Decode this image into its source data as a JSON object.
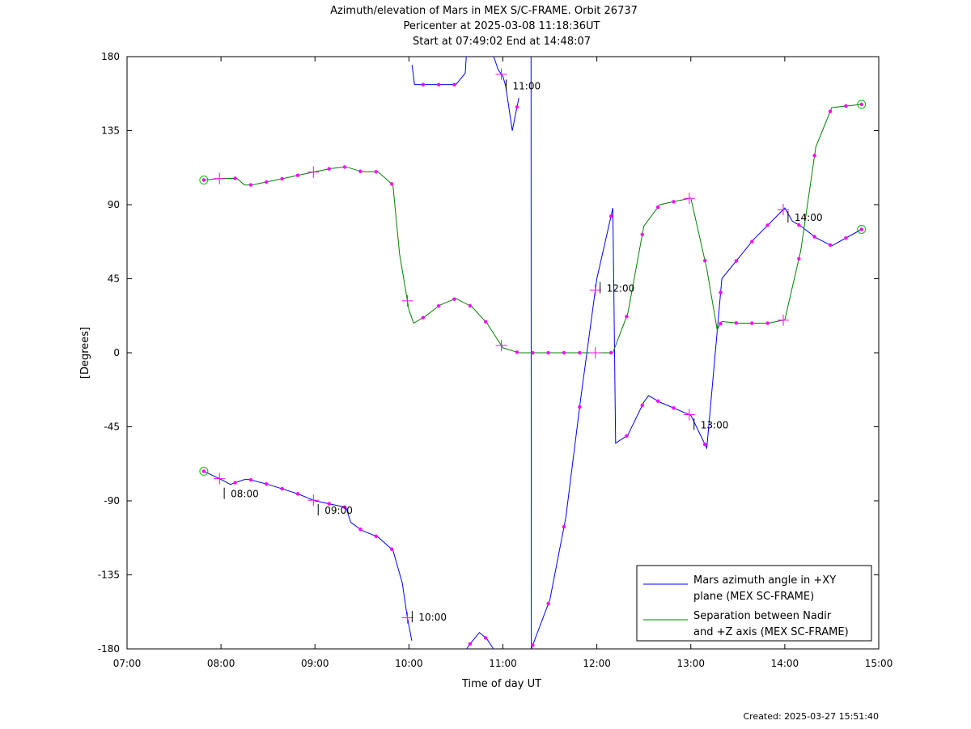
{
  "chart_data": {
    "type": "line",
    "title_lines": [
      "Azimuth/elevation of Mars in MEX S/C-FRAME.  Orbit 26737",
      "Pericenter at 2025-03-08 11:18:36UT",
      "Start at 07:49:02 End at 14:48:07"
    ],
    "xlabel": "Time of day UT",
    "ylabel": "[Degrees]",
    "xlim_hours": [
      7,
      15
    ],
    "ylim": [
      -180,
      180
    ],
    "x_tick_labels": [
      "07:00",
      "08:00",
      "09:00",
      "10:00",
      "11:00",
      "12:00",
      "13:00",
      "14:00",
      "15:00"
    ],
    "y_ticks": [
      -180,
      -135,
      -90,
      -45,
      0,
      45,
      90,
      135,
      180
    ],
    "y_tick_labels": [
      "-180",
      "-135",
      "-90",
      "-45",
      "0",
      "45",
      "90",
      "135",
      "180"
    ],
    "grid": false,
    "legend_position": "bottom-right",
    "legend_box_lines": true,
    "series": [
      {
        "name": "Mars azimuth angle in +XY plane (MEX SC-FRAME)",
        "legend_lines": [
          "Mars azimuth angle in +XY",
          "plane (MEX SC-FRAME)"
        ],
        "color": "#0000ff",
        "x_hours": [
          7.817,
          8.0,
          8.1,
          8.25,
          8.3,
          8.5,
          8.67,
          8.83,
          9.0,
          9.17,
          9.33,
          9.38,
          9.5,
          9.67,
          9.83,
          9.93,
          9.98,
          10.03,
          10.033,
          10.06,
          10.17,
          10.33,
          10.5,
          10.6,
          10.61,
          10.613,
          10.65,
          10.75,
          10.83,
          10.9,
          10.903,
          10.95,
          11.0,
          11.03,
          11.1,
          11.17,
          11.3,
          11.302,
          11.5,
          11.67,
          11.83,
          12.0,
          12.17,
          12.2,
          12.33,
          12.5,
          12.55,
          12.67,
          13.0,
          13.17,
          13.33,
          13.5,
          13.67,
          14.0,
          14.08,
          14.17,
          14.33,
          14.5,
          14.817
        ],
        "values": [
          -72,
          -77,
          -80,
          -77,
          -77,
          -80,
          -83,
          -86,
          -90,
          -92,
          -94,
          -103,
          -108,
          -112,
          -120,
          -140,
          -160,
          -175,
          175,
          163,
          163,
          163,
          163,
          170,
          180,
          -180,
          -177,
          -170,
          -174,
          -180,
          180,
          172,
          168,
          162,
          135,
          155,
          180,
          -180,
          -150,
          -100,
          -27,
          45,
          88,
          -55,
          -50,
          -30,
          -26,
          -30,
          -38,
          -58,
          45,
          57,
          69,
          88,
          80,
          77,
          70,
          65,
          75
        ],
        "breaks_after_index": [
          17,
          24,
          29,
          35
        ]
      },
      {
        "name": "Separation between Nadir and +Z axis (MEX SC-FRAME)",
        "legend_lines": [
          "Separation between Nadir",
          "and +Z axis (MEX SC-FRAME)"
        ],
        "color": "#008000",
        "x_hours": [
          7.817,
          8.0,
          8.17,
          8.25,
          8.33,
          8.5,
          8.67,
          8.83,
          9.0,
          9.17,
          9.33,
          9.5,
          9.67,
          9.83,
          9.9,
          10.0,
          10.05,
          10.17,
          10.33,
          10.5,
          10.67,
          10.83,
          11.0,
          11.17,
          11.3,
          11.5,
          11.67,
          11.83,
          12.0,
          12.17,
          12.33,
          12.5,
          12.67,
          12.83,
          13.0,
          13.17,
          13.28,
          13.33,
          13.5,
          13.67,
          13.83,
          14.0,
          14.17,
          14.33,
          14.5,
          14.817
        ],
        "values": [
          105,
          106,
          106,
          102,
          102,
          104,
          106,
          108,
          110,
          112,
          113,
          110,
          110,
          102,
          60,
          26,
          18,
          22,
          29,
          33,
          28,
          18,
          3,
          0,
          0,
          0,
          0,
          0,
          0,
          0,
          24,
          77,
          90,
          92,
          94,
          51,
          14,
          19,
          18,
          18,
          18,
          20,
          62,
          125,
          149,
          151
        ]
      }
    ],
    "marker_color": "#ff00ff",
    "endpoint_marker_color": "#00c000",
    "annotations": [
      {
        "text": "08:00",
        "x_hours": 8.0,
        "y": -80
      },
      {
        "text": "09:00",
        "x_hours": 9.0,
        "y": -90
      },
      {
        "text": "10:00",
        "x_hours": 10.0,
        "y": -155
      },
      {
        "text": "11:00",
        "x_hours": 11.0,
        "y": 168
      },
      {
        "text": "12:00",
        "x_hours": 12.0,
        "y": 45
      },
      {
        "text": "13:00",
        "x_hours": 13.0,
        "y": -38
      },
      {
        "text": "14:00",
        "x_hours": 14.0,
        "y": 88
      }
    ],
    "created_text": "Created: 2025-03-27 15:51:40"
  }
}
